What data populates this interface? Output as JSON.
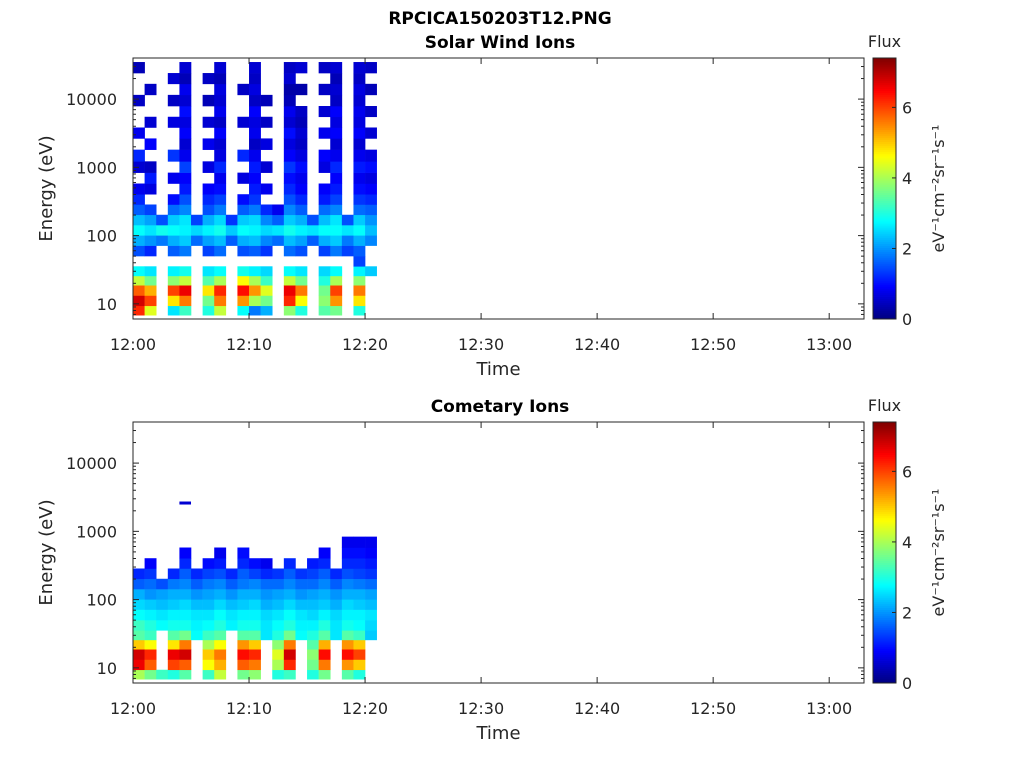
{
  "figure_title": "RPCICA150203T12.PNG",
  "colorbar": {
    "title": "Flux",
    "label": "eV⁻¹cm⁻²sr⁻¹s⁻¹",
    "ticks": [
      "0",
      "2",
      "4",
      "6"
    ],
    "range": [
      0,
      7.4
    ],
    "colormap": "jet"
  },
  "chart_data": [
    {
      "type": "heatmap",
      "title": "Solar Wind Ions",
      "xlabel": "Time",
      "ylabel": "Energy (eV)",
      "x_tick_labels": [
        "12:00",
        "12:10",
        "12:20",
        "12:30",
        "12:40",
        "12:50",
        "13:00"
      ],
      "y_tick_labels": [
        "10",
        "100",
        "1000",
        "10000"
      ],
      "y_scale": "log",
      "xlim": [
        "12:00",
        "13:03"
      ],
      "ylim": [
        6,
        40000
      ],
      "data_coverage": [
        "12:00",
        "12:21"
      ],
      "time_bins": [
        "12:00",
        "12:01",
        "12:02",
        "12:03",
        "12:04",
        "12:05",
        "12:06",
        "12:07",
        "12:08",
        "12:09",
        "12:10",
        "12:11",
        "12:12",
        "12:13",
        "12:14",
        "12:15",
        "12:16",
        "12:17",
        "12:18",
        "12:19",
        "12:20"
      ],
      "energy_bins_eV": [
        8,
        11,
        16,
        22,
        30,
        42,
        60,
        85,
        120,
        170,
        240,
        340,
        480,
        700,
        1000,
        1500,
        2200,
        3200,
        4600,
        6600,
        9500,
        14000,
        20000,
        29000
      ],
      "flux": [
        [
          6.2,
          6.8,
          5.8,
          4.2,
          2.8,
          0,
          1.5,
          2.2,
          2.8,
          2.3,
          1.6,
          1.2,
          0.8,
          0,
          0.6,
          1.2,
          0,
          0.8,
          0,
          0,
          0.5,
          0,
          0,
          0.4
        ],
        [
          4.4,
          6.0,
          5.2,
          3.6,
          2.6,
          0,
          1.2,
          2.0,
          2.6,
          2.1,
          1.4,
          0,
          0.7,
          1.1,
          0.5,
          0,
          0.9,
          0,
          0.6,
          0,
          0,
          0.5,
          0,
          0
        ],
        [
          0,
          0,
          0,
          0,
          0,
          0,
          0,
          1.8,
          2.9,
          1.5,
          0,
          0,
          0,
          0,
          0,
          0,
          0,
          0,
          0,
          0,
          0,
          0,
          0,
          0
        ],
        [
          2.6,
          4.8,
          6.0,
          3.8,
          2.7,
          0,
          1.6,
          2.2,
          2.8,
          2.4,
          1.7,
          1.0,
          0,
          0.8,
          0,
          1.3,
          0,
          0,
          0.7,
          0,
          0.5,
          0,
          0.6,
          0
        ],
        [
          3.2,
          5.6,
          6.6,
          4.2,
          2.9,
          0,
          1.8,
          2.4,
          2.7,
          2.6,
          1.9,
          1.5,
          1.1,
          0.9,
          1.4,
          0.8,
          0.6,
          0.9,
          0.7,
          1.0,
          0.6,
          0.8,
          0.4,
          0.6
        ],
        [
          0,
          0,
          0,
          0,
          0,
          0,
          0,
          1.7,
          2.5,
          1.4,
          0,
          0,
          0,
          0,
          0,
          0,
          0,
          0,
          0,
          0,
          0,
          0,
          0,
          0
        ],
        [
          3.0,
          3.6,
          4.8,
          3.4,
          2.6,
          0,
          1.4,
          2.1,
          2.7,
          2.2,
          1.5,
          1.2,
          0.9,
          0,
          0.7,
          0,
          0.8,
          0,
          0.6,
          0,
          0.4,
          0,
          0.5,
          0
        ],
        [
          4.2,
          5.6,
          6.2,
          4.0,
          2.8,
          0,
          1.7,
          2.3,
          2.9,
          2.5,
          1.8,
          1.4,
          1.0,
          0.8,
          1.2,
          0.7,
          0.6,
          0.9,
          0.5,
          0.8,
          0.6,
          0.7,
          0.4,
          0.6
        ],
        [
          0,
          0,
          0,
          0,
          0,
          0,
          0,
          1.6,
          2.4,
          1.3,
          0,
          0,
          0,
          0,
          0,
          0,
          0,
          0,
          0,
          0,
          0,
          0,
          0,
          0
        ],
        [
          2.8,
          5.4,
          6.4,
          4.6,
          2.9,
          0,
          1.5,
          2.2,
          2.8,
          2.4,
          1.6,
          1.0,
          0,
          0.7,
          0,
          1.2,
          0,
          0,
          0.6,
          0,
          0,
          0.5,
          0,
          0
        ],
        [
          1.8,
          4.0,
          5.4,
          4.0,
          2.7,
          0,
          1.6,
          2.3,
          2.7,
          2.5,
          1.8,
          1.3,
          1.1,
          0.9,
          1.1,
          0.8,
          0.5,
          0.8,
          0.7,
          0.9,
          0.5,
          0.7,
          0.5,
          0.6
        ],
        [
          2.2,
          3.6,
          4.4,
          3.2,
          2.5,
          0,
          1.3,
          1.9,
          2.5,
          1.9,
          1.2,
          0,
          0.8,
          0,
          0.6,
          0,
          0.7,
          0,
          0.5,
          0,
          0.4,
          0,
          0,
          0
        ],
        [
          0,
          0,
          0,
          0,
          0,
          0,
          0,
          1.7,
          2.6,
          1.6,
          0.8,
          0,
          0,
          0,
          0,
          0,
          0,
          0,
          0,
          0,
          0,
          0,
          0,
          0
        ],
        [
          3.8,
          6.2,
          6.6,
          4.2,
          2.8,
          0,
          1.7,
          2.3,
          2.9,
          2.4,
          1.9,
          1.5,
          1.2,
          1.0,
          1.3,
          0.9,
          0.7,
          1.0,
          0.6,
          0.8,
          0.4,
          0.3,
          0.6,
          0.5
        ],
        [
          3.0,
          4.6,
          5.6,
          3.6,
          2.6,
          0,
          1.5,
          2.1,
          2.7,
          2.2,
          1.6,
          1.2,
          0.9,
          0.8,
          1.0,
          0.7,
          0.5,
          0.6,
          0.4,
          0.5,
          0,
          0.3,
          0,
          0.6
        ],
        [
          0,
          0,
          0,
          0,
          0,
          0,
          0,
          1.6,
          2.6,
          1.5,
          0,
          0,
          0,
          0,
          0,
          0,
          0,
          0,
          0,
          0,
          0,
          0,
          0,
          0
        ],
        [
          3.4,
          3.8,
          3.6,
          3.0,
          2.5,
          0,
          1.4,
          2.2,
          2.8,
          2.3,
          1.7,
          1.1,
          0.9,
          0,
          0.7,
          0.9,
          0,
          0.8,
          0,
          0.6,
          0,
          0.5,
          0,
          0.5
        ],
        [
          3.6,
          5.4,
          6.0,
          4.0,
          2.8,
          0,
          1.8,
          2.4,
          2.8,
          2.6,
          1.9,
          1.4,
          1.1,
          0.9,
          1.2,
          0.8,
          0.6,
          0.9,
          0.7,
          0.9,
          0.5,
          0.6,
          0.4,
          0.6
        ],
        [
          0,
          0,
          0,
          0,
          0,
          0,
          1.4,
          1.8,
          2.6,
          1.5,
          0,
          0,
          0,
          0,
          0,
          0,
          0,
          0,
          0,
          0,
          0,
          0,
          0,
          0
        ],
        [
          3.0,
          4.8,
          5.6,
          3.8,
          2.7,
          1.4,
          1.6,
          2.2,
          2.8,
          2.4,
          1.7,
          1.3,
          1.0,
          0.8,
          1.1,
          0.8,
          0.6,
          0.9,
          0.7,
          0.8,
          0.6,
          0.7,
          0.5,
          0.6
        ],
        [
          0,
          0,
          0,
          0,
          2.4,
          0,
          0,
          1.9,
          2.3,
          2.0,
          1.6,
          1.2,
          0.9,
          0.7,
          1.0,
          0.7,
          0,
          0.6,
          0,
          0.5,
          0,
          0.4,
          0,
          0.5
        ]
      ]
    },
    {
      "type": "heatmap",
      "title": "Cometary Ions",
      "xlabel": "Time",
      "ylabel": "Energy (eV)",
      "x_tick_labels": [
        "12:00",
        "12:10",
        "12:20",
        "12:30",
        "12:40",
        "12:50",
        "13:00"
      ],
      "y_tick_labels": [
        "10",
        "100",
        "1000",
        "10000"
      ],
      "y_scale": "log",
      "xlim": [
        "12:00",
        "13:03"
      ],
      "ylim": [
        6,
        40000
      ],
      "data_coverage": [
        "12:00",
        "12:21"
      ],
      "time_bins": [
        "12:00",
        "12:01",
        "12:02",
        "12:03",
        "12:04",
        "12:05",
        "12:06",
        "12:07",
        "12:08",
        "12:09",
        "12:10",
        "12:11",
        "12:12",
        "12:13",
        "12:14",
        "12:15",
        "12:16",
        "12:17",
        "12:18",
        "12:19",
        "12:20"
      ],
      "energy_bins_eV": [
        8,
        11,
        16,
        22,
        30,
        42,
        60,
        85,
        120,
        170,
        240,
        340,
        480,
        700,
        1000,
        1500,
        2200,
        3200,
        4600,
        6600,
        9500,
        14000,
        20000,
        29000
      ],
      "flux": [
        [
          4.0,
          6.6,
          6.8,
          5.0,
          3.4,
          3.2,
          2.8,
          2.5,
          2.2,
          1.6,
          1.2,
          0,
          0,
          0,
          0,
          0,
          0,
          0,
          0,
          0,
          0,
          0,
          0,
          0
        ],
        [
          3.6,
          5.8,
          6.2,
          4.6,
          3.2,
          3.0,
          2.7,
          2.4,
          2.0,
          1.7,
          1.3,
          0.9,
          0,
          0,
          0,
          0,
          0,
          0,
          0,
          0,
          0,
          0,
          0,
          0
        ],
        [
          3.2,
          0,
          0,
          0,
          0,
          2.8,
          2.6,
          2.3,
          2.1,
          1.5,
          0,
          0,
          0,
          0,
          0,
          0,
          0,
          0,
          0,
          0,
          0,
          0,
          0,
          0
        ],
        [
          3.0,
          6.0,
          6.6,
          4.8,
          3.4,
          2.9,
          2.7,
          2.4,
          2.2,
          1.8,
          1.2,
          0,
          0,
          0,
          0,
          0,
          0,
          0,
          0,
          0,
          0,
          0,
          0,
          0
        ],
        [
          3.4,
          5.8,
          6.8,
          5.6,
          3.6,
          2.9,
          2.7,
          2.5,
          2.2,
          1.9,
          1.6,
          1.2,
          0.9,
          0,
          0,
          0,
          0,
          0,
          0,
          0,
          0,
          0,
          0,
          0
        ],
        [
          0,
          0,
          0,
          0,
          2.8,
          2.7,
          2.6,
          2.3,
          2.0,
          1.6,
          1.2,
          0,
          0,
          0,
          0,
          0,
          0,
          0,
          0,
          0,
          0,
          0,
          0,
          0
        ],
        [
          3.2,
          4.6,
          5.0,
          4.0,
          3.2,
          2.8,
          2.6,
          2.3,
          2.1,
          1.8,
          1.4,
          1.0,
          0,
          0,
          0,
          0,
          0,
          0,
          0,
          0,
          0,
          0,
          0,
          0
        ],
        [
          4.2,
          5.2,
          5.6,
          4.6,
          3.4,
          3.0,
          2.8,
          2.5,
          2.2,
          1.9,
          1.5,
          1.1,
          0.8,
          0,
          0,
          0,
          0,
          0,
          0,
          0,
          0,
          0,
          0,
          0
        ],
        [
          0,
          0,
          0,
          0,
          0,
          2.7,
          2.6,
          2.3,
          2.0,
          1.6,
          1.2,
          0,
          0,
          0,
          0,
          0,
          0,
          0,
          0,
          0,
          0,
          0,
          0,
          0
        ],
        [
          3.6,
          5.8,
          6.4,
          5.4,
          3.4,
          2.9,
          2.7,
          2.4,
          2.2,
          1.8,
          1.6,
          1.2,
          1.0,
          0,
          0,
          0,
          0,
          0,
          0,
          0,
          0,
          0,
          0,
          0
        ],
        [
          3.8,
          5.6,
          6.2,
          5.0,
          3.4,
          2.9,
          2.7,
          2.5,
          2.2,
          1.9,
          1.4,
          1.0,
          0,
          0,
          0,
          0,
          0,
          0,
          0,
          0,
          0,
          0,
          0,
          0
        ],
        [
          0,
          0,
          0,
          0,
          2.6,
          2.6,
          2.5,
          2.2,
          2.0,
          1.7,
          1.2,
          0.8,
          0,
          0,
          0,
          0,
          0,
          0,
          0,
          0,
          0,
          0,
          0,
          0
        ],
        [
          3.0,
          4.0,
          4.4,
          3.8,
          3.0,
          2.8,
          2.6,
          2.3,
          2.1,
          1.7,
          1.3,
          0,
          0,
          0,
          0,
          0,
          0,
          0,
          0,
          0,
          0,
          0,
          0,
          0
        ],
        [
          3.2,
          6.2,
          6.8,
          5.6,
          3.6,
          3.0,
          2.8,
          2.5,
          2.2,
          1.9,
          1.6,
          1.2,
          0,
          0,
          0,
          0,
          0,
          0,
          0,
          0,
          0,
          0,
          0,
          0
        ],
        [
          0,
          0,
          0,
          0,
          2.8,
          2.7,
          2.6,
          2.3,
          2.0,
          1.7,
          1.3,
          0,
          0,
          0,
          0,
          0,
          0,
          0,
          0,
          0,
          0,
          0,
          0,
          0
        ],
        [
          3.0,
          3.6,
          3.8,
          3.4,
          3.0,
          2.7,
          2.5,
          2.3,
          2.1,
          1.7,
          1.4,
          1.1,
          0,
          0,
          0,
          0,
          0,
          0,
          0,
          0,
          0,
          0,
          0,
          0
        ],
        [
          3.6,
          5.6,
          6.4,
          5.2,
          3.4,
          3.0,
          2.7,
          2.4,
          2.2,
          1.9,
          1.6,
          1.2,
          0.9,
          0,
          0,
          0,
          0,
          0,
          0,
          0,
          0,
          0,
          0,
          0
        ],
        [
          0,
          0,
          0,
          0,
          2.6,
          2.6,
          2.5,
          2.2,
          2.0,
          1.6,
          1.2,
          0,
          0,
          0,
          0,
          0,
          0,
          0,
          0,
          0,
          0,
          0,
          0,
          0
        ],
        [
          3.4,
          5.4,
          6.4,
          5.4,
          3.4,
          2.9,
          2.7,
          2.5,
          2.2,
          1.9,
          1.5,
          1.2,
          1.0,
          0.8,
          0,
          0,
          0,
          0,
          0,
          0,
          0,
          0,
          0,
          0
        ],
        [
          3.0,
          5.0,
          6.0,
          5.0,
          3.2,
          2.8,
          2.7,
          2.4,
          2.2,
          1.8,
          1.4,
          1.2,
          1.0,
          0.8,
          0,
          0,
          0,
          0,
          0,
          0,
          0,
          0,
          0,
          0
        ],
        [
          0,
          0,
          0,
          0,
          2.4,
          2.5,
          2.6,
          2.3,
          2.1,
          1.7,
          1.3,
          1.1,
          0.9,
          0.8,
          0,
          0,
          0,
          0,
          0,
          0,
          0,
          0,
          0,
          0
        ]
      ],
      "isolated_points": [
        {
          "time": "12:04",
          "energy_eV": 2600,
          "flux": 0.6
        }
      ]
    }
  ]
}
